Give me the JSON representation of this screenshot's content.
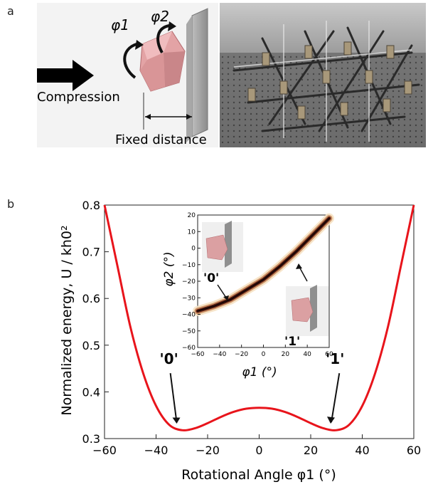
{
  "figure": {
    "panel_a_letter": "a",
    "panel_b_letter": "b"
  },
  "panel_a": {
    "phi1_label": "φ1",
    "phi2_label": "φ2",
    "compression_label": "Compression",
    "fixed_distance_label": "Fixed distance"
  },
  "chart_data": [
    {
      "type": "line",
      "xlabel": "Rotational Angle φ1 (°)",
      "ylabel": "Normalized energy, U / kh0²",
      "xlim": [
        -60,
        60
      ],
      "ylim": [
        0.3,
        0.8
      ],
      "x_ticks": [
        "−60",
        "−40",
        "−20",
        "0",
        "20",
        "40",
        "60"
      ],
      "y_ticks": [
        "0.3",
        "0.4",
        "0.5",
        "0.6",
        "0.7",
        "0.8"
      ],
      "series": [
        {
          "color": "#e8141b",
          "x": [
            -60,
            -55,
            -50,
            -45,
            -40,
            -35,
            -30,
            -25,
            -20,
            -15,
            -10,
            -5,
            0,
            5,
            10,
            15,
            20,
            25,
            30,
            35,
            40,
            45,
            50,
            55,
            60
          ],
          "y": [
            0.8,
            0.67,
            0.54,
            0.44,
            0.37,
            0.33,
            0.318,
            0.322,
            0.333,
            0.346,
            0.357,
            0.364,
            0.366,
            0.364,
            0.357,
            0.346,
            0.333,
            0.322,
            0.318,
            0.33,
            0.37,
            0.44,
            0.54,
            0.67,
            0.8
          ]
        }
      ],
      "annotations": [
        {
          "text": "'0'",
          "x": -35
        },
        {
          "text": "'1'",
          "x": 30
        }
      ],
      "grid": false
    },
    {
      "type": "heatmap",
      "xlabel": "φ1 (°)",
      "ylabel": "φ2 (°)",
      "xlim": [
        -60,
        60
      ],
      "ylim": [
        -60,
        20
      ],
      "x_ticks": [
        "−60",
        "−40",
        "−20",
        "0",
        "20",
        "40",
        "60"
      ],
      "y_ticks": [
        "20",
        "10",
        "0",
        "−10",
        "−20",
        "−30",
        "−40",
        "−50",
        "−60"
      ],
      "band": {
        "x": [
          -60,
          -45,
          -30,
          -15,
          0,
          15,
          30,
          45,
          60
        ],
        "y": [
          -38,
          -35,
          -31,
          -25,
          -19,
          -11,
          -2,
          8,
          18
        ]
      },
      "annotations": [
        {
          "text": "'0'"
        },
        {
          "text": "'1'"
        }
      ]
    }
  ]
}
